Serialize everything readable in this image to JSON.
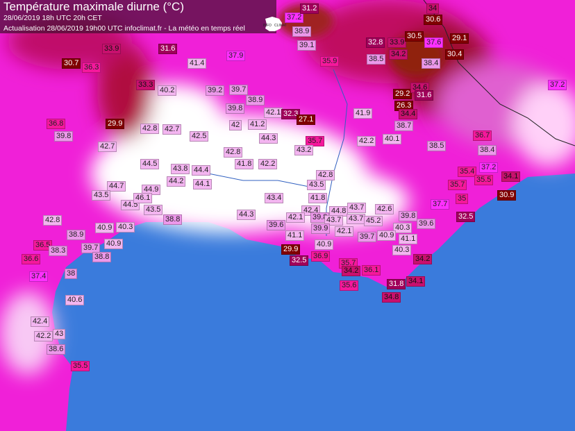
{
  "header": {
    "title": "Température maximale diurne (°C)",
    "run_line": "28/06/2019  18h UTC  20h CET",
    "update_line": "Actualisation 28/06/2019 19h00 UTC   infoclimat.fr - La météo en temps réel"
  },
  "logo": {
    "text": "INFOCLIMAT",
    "icon": "france-map-icon"
  },
  "colors": {
    "sea": "#3a7bdc",
    "land_hot": "#ff00dd",
    "land_extreme": "#ffffff",
    "land_cool": "#8a0010"
  },
  "stations": [
    "37.2",
    "31.2",
    "34",
    "30.6",
    "38.9",
    "39.1",
    "32.8",
    "33.9",
    "30.5",
    "37.6",
    "29.1",
    "34.2",
    "30.4",
    "33.9",
    "31.6",
    "30.7",
    "36.3",
    "41.4",
    "37.9",
    "35.9",
    "38.5",
    "38.4",
    "33.3",
    "40.2",
    "39.2",
    "39.7",
    "38.9",
    "39.8",
    "42.1",
    "32.3",
    "27.1",
    "29.2",
    "34.6",
    "31.6",
    "26.3",
    "41.9",
    "34.4",
    "38.7",
    "37.2",
    "36.8",
    "39.8",
    "29.9",
    "42.8",
    "42.7",
    "42.5",
    "42",
    "41.2",
    "44.3",
    "35.7",
    "43.2",
    "42.2",
    "40.1",
    "36.7",
    "38.5",
    "38.4",
    "42.7",
    "42.8",
    "41.8",
    "42.2",
    "44.5",
    "43.8",
    "44.4",
    "37.2",
    "35.4",
    "34.1",
    "42.8",
    "44.2",
    "44.1",
    "43.5",
    "35.5",
    "35.7",
    "44.7",
    "44.9",
    "43.5",
    "43.4",
    "41.8",
    "30.9",
    "35",
    "37.7",
    "44.5",
    "46.1",
    "43.5",
    "42.4",
    "44.8",
    "43.7",
    "42.6",
    "44.3",
    "42.1",
    "39.8",
    "43.7",
    "43.7",
    "45.2",
    "39.8",
    "39.6",
    "42.8",
    "38.8",
    "39.6",
    "39.9",
    "40.3",
    "32.5",
    "40.9",
    "40.3",
    "38.9",
    "42.1",
    "41.1",
    "39.7",
    "40.9",
    "41.1",
    "36.5",
    "40.9",
    "39.7",
    "38.3",
    "40.9",
    "40.3",
    "29.9",
    "38.8",
    "36.6",
    "32.5",
    "36.9",
    "34.2",
    "35.7",
    "34.2",
    "36.1",
    "37.4",
    "38",
    "35.6",
    "31.8",
    "34.1",
    "34.8",
    "40.6",
    "42.4",
    "43",
    "42.2",
    "38.6",
    "35.5"
  ]
}
